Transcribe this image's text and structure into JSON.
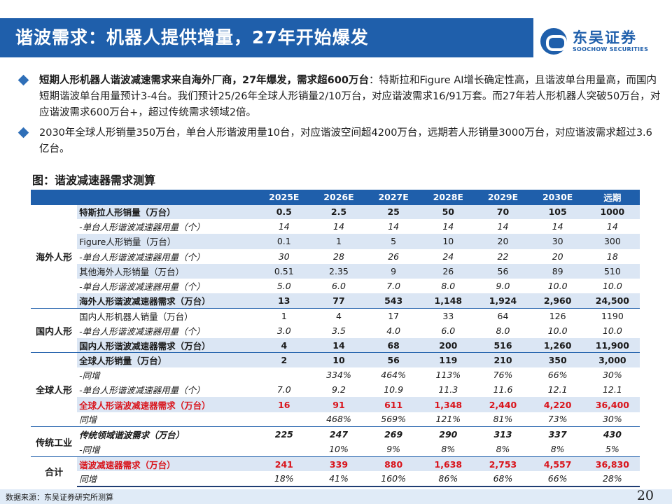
{
  "header": {
    "title": "谐波需求：机器人提供增量，27年开始爆发",
    "logo_cn": "东吴证券",
    "logo_en": "SOOCHOW SECURITIES"
  },
  "bullets": [
    {
      "bold": "短期人形机器人谐波减速需求来自海外厂商，27年爆发，需求超600万台",
      "text": "：特斯拉和Figure AI增长确定性高，且谐波单台用量高，而国内短期谐波单台用量预计3-4台。我们预计25/26年全球人形销量2/10万台，对应谐波需求16/91万套。而27年若人形机器人突破50万台，对应谐波需求600万台+，超过传统需求领域2倍。"
    },
    {
      "bold": "",
      "text": "2030年全球人形销量350万台，单台人形谐波用量10台，对应谐波空间超4200万台，远期若人形销量3000万台，对应谐波需求超过3.6亿台。"
    }
  ],
  "figure_title": "图：谐波减速器需求测算",
  "table": {
    "columns": [
      "2025E",
      "2026E",
      "2027E",
      "2028E",
      "2029E",
      "2030E",
      "远期"
    ],
    "groups": [
      {
        "name": "海外人形",
        "rows": [
          {
            "label": "特斯拉人形销量（万台）",
            "style": "bold band",
            "values": [
              "0.5",
              "2.5",
              "25",
              "50",
              "70",
              "105",
              "1000"
            ]
          },
          {
            "label": "-单台人形谐波减速器用量（个）",
            "style": "ital",
            "values": [
              "14",
              "14",
              "14",
              "14",
              "14",
              "14",
              "14"
            ]
          },
          {
            "label": "Figure人形销量（万台）",
            "style": "band",
            "values": [
              "0.1",
              "1",
              "5",
              "10",
              "20",
              "30",
              "300"
            ]
          },
          {
            "label": "-单台人形谐波减速器用量（个）",
            "style": "ital",
            "values": [
              "30",
              "28",
              "26",
              "24",
              "22",
              "20",
              "18"
            ]
          },
          {
            "label": "其他海外人形销量（万台）",
            "style": "band",
            "values": [
              "0.51",
              "2.35",
              "9",
              "26",
              "56",
              "89",
              "510"
            ]
          },
          {
            "label": "-单台人形谐波减速器用量（个）",
            "style": "ital",
            "values": [
              "5.0",
              "6.0",
              "7.0",
              "8.0",
              "9.0",
              "10.0",
              "10.0"
            ]
          },
          {
            "label": "海外人形谐波减速器需求（万台）",
            "style": "bold band",
            "values": [
              "13",
              "77",
              "543",
              "1,148",
              "1,924",
              "2,960",
              "24,500"
            ]
          }
        ]
      },
      {
        "name": "国内人形",
        "rows": [
          {
            "label": "国内人形机器人销量（万台）",
            "style": "",
            "values": [
              "1",
              "4",
              "17",
              "33",
              "64",
              "126",
              "1190"
            ]
          },
          {
            "label": "-单台人形谐波减速器用量（个）",
            "style": "ital",
            "values": [
              "3.0",
              "3.5",
              "4.0",
              "6.0",
              "8.0",
              "10.0",
              "10.0"
            ]
          },
          {
            "label": "国内人形谐波减速器需求（万台）",
            "style": "bold band",
            "values": [
              "4",
              "14",
              "68",
              "200",
              "516",
              "1,260",
              "11,900"
            ]
          }
        ]
      },
      {
        "name": "全球人形",
        "rows": [
          {
            "label": "全球人形销量（万台）",
            "style": "bold band",
            "values": [
              "2",
              "10",
              "56",
              "119",
              "210",
              "350",
              "3,000"
            ]
          },
          {
            "label": "-同增",
            "style": "ital",
            "values": [
              "",
              "334%",
              "464%",
              "113%",
              "76%",
              "66%",
              "30%"
            ]
          },
          {
            "label": "-单台人形谐波减速器用量（个）",
            "style": "ital",
            "values": [
              "7.0",
              "9.2",
              "10.9",
              "11.3",
              "11.6",
              "12.1",
              "12.1"
            ]
          },
          {
            "label": "全球人形谐波减速器需求（万台）",
            "style": "red band",
            "values": [
              "16",
              "91",
              "611",
              "1,348",
              "2,440",
              "4,220",
              "36,400"
            ]
          },
          {
            "label": "同增",
            "style": "ital",
            "values": [
              "",
              "468%",
              "569%",
              "121%",
              "81%",
              "73%",
              "30%"
            ]
          }
        ]
      },
      {
        "name": "传统工业",
        "rows": [
          {
            "label": "传统领域谐波需求（万台）",
            "style": "bold ital",
            "values": [
              "225",
              "247",
              "269",
              "290",
              "313",
              "337",
              "430"
            ]
          },
          {
            "label": "-同增",
            "style": "ital",
            "values": [
              "",
              "10%",
              "9%",
              "8%",
              "8%",
              "8%",
              "5%"
            ]
          }
        ]
      },
      {
        "name": "合计",
        "rows": [
          {
            "label": "谐波减速器需求（万台）",
            "style": "red band",
            "values": [
              "241",
              "339",
              "880",
              "1,638",
              "2,753",
              "4,557",
              "36,830"
            ]
          },
          {
            "label": "同增",
            "style": "ital",
            "values": [
              "18%",
              "41%",
              "160%",
              "86%",
              "68%",
              "66%",
              "28%"
            ]
          }
        ]
      }
    ]
  },
  "footer": {
    "source": "数据来源：东吴证券研究所测算",
    "page": "20"
  },
  "colors": {
    "brand_blue": "#1f5fab",
    "band": "#dbe6f4",
    "highlight_red": "#d9141b",
    "footer_bg": "#e0ebf7"
  }
}
